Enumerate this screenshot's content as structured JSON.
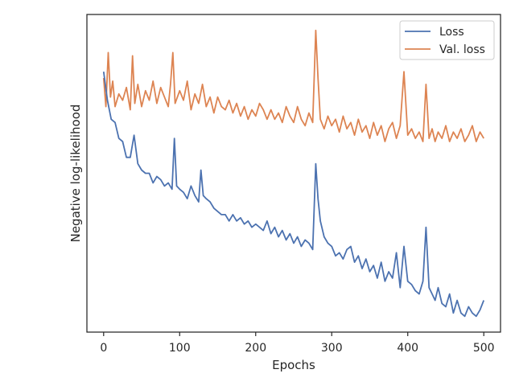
{
  "chart_data": {
    "type": "line",
    "title": "",
    "xlabel": "Epochs",
    "ylabel": "Negative log-likelihood",
    "xlim": [
      -22,
      522
    ],
    "ylim": [
      0.0,
      1.0
    ],
    "x_ticks": [
      0,
      100,
      200,
      300,
      400,
      500
    ],
    "y_ticks": [],
    "grid": false,
    "legend": {
      "position": "top-right"
    },
    "series": [
      {
        "name": "Loss",
        "color": "#4c72b0",
        "x_start": 0,
        "x_end": 500,
        "points": [
          [
            0,
            0.82
          ],
          [
            5,
            0.73
          ],
          [
            10,
            0.67
          ],
          [
            15,
            0.66
          ],
          [
            20,
            0.61
          ],
          [
            25,
            0.6
          ],
          [
            30,
            0.55
          ],
          [
            35,
            0.55
          ],
          [
            40,
            0.62
          ],
          [
            45,
            0.53
          ],
          [
            50,
            0.51
          ],
          [
            55,
            0.5
          ],
          [
            60,
            0.5
          ],
          [
            65,
            0.47
          ],
          [
            70,
            0.49
          ],
          [
            75,
            0.48
          ],
          [
            80,
            0.46
          ],
          [
            85,
            0.47
          ],
          [
            90,
            0.45
          ],
          [
            93,
            0.61
          ],
          [
            96,
            0.46
          ],
          [
            100,
            0.45
          ],
          [
            105,
            0.44
          ],
          [
            110,
            0.42
          ],
          [
            115,
            0.46
          ],
          [
            120,
            0.43
          ],
          [
            125,
            0.41
          ],
          [
            128,
            0.51
          ],
          [
            131,
            0.43
          ],
          [
            135,
            0.42
          ],
          [
            140,
            0.41
          ],
          [
            145,
            0.39
          ],
          [
            150,
            0.38
          ],
          [
            155,
            0.37
          ],
          [
            160,
            0.37
          ],
          [
            165,
            0.35
          ],
          [
            170,
            0.37
          ],
          [
            175,
            0.35
          ],
          [
            180,
            0.36
          ],
          [
            185,
            0.34
          ],
          [
            190,
            0.35
          ],
          [
            195,
            0.33
          ],
          [
            200,
            0.34
          ],
          [
            205,
            0.33
          ],
          [
            210,
            0.32
          ],
          [
            215,
            0.35
          ],
          [
            220,
            0.31
          ],
          [
            225,
            0.33
          ],
          [
            230,
            0.3
          ],
          [
            235,
            0.32
          ],
          [
            240,
            0.29
          ],
          [
            245,
            0.31
          ],
          [
            250,
            0.28
          ],
          [
            255,
            0.3
          ],
          [
            260,
            0.27
          ],
          [
            265,
            0.29
          ],
          [
            270,
            0.28
          ],
          [
            275,
            0.26
          ],
          [
            279,
            0.53
          ],
          [
            282,
            0.42
          ],
          [
            285,
            0.35
          ],
          [
            290,
            0.3
          ],
          [
            295,
            0.28
          ],
          [
            300,
            0.27
          ],
          [
            305,
            0.24
          ],
          [
            310,
            0.25
          ],
          [
            315,
            0.23
          ],
          [
            320,
            0.26
          ],
          [
            325,
            0.27
          ],
          [
            330,
            0.22
          ],
          [
            335,
            0.24
          ],
          [
            340,
            0.2
          ],
          [
            345,
            0.23
          ],
          [
            350,
            0.19
          ],
          [
            355,
            0.21
          ],
          [
            360,
            0.17
          ],
          [
            365,
            0.22
          ],
          [
            370,
            0.16
          ],
          [
            375,
            0.19
          ],
          [
            380,
            0.17
          ],
          [
            385,
            0.25
          ],
          [
            390,
            0.14
          ],
          [
            395,
            0.27
          ],
          [
            400,
            0.16
          ],
          [
            405,
            0.15
          ],
          [
            410,
            0.13
          ],
          [
            415,
            0.12
          ],
          [
            420,
            0.16
          ],
          [
            424,
            0.33
          ],
          [
            428,
            0.14
          ],
          [
            432,
            0.12
          ],
          [
            436,
            0.1
          ],
          [
            440,
            0.14
          ],
          [
            445,
            0.09
          ],
          [
            450,
            0.08
          ],
          [
            455,
            0.12
          ],
          [
            460,
            0.06
          ],
          [
            465,
            0.1
          ],
          [
            470,
            0.06
          ],
          [
            475,
            0.05
          ],
          [
            480,
            0.08
          ],
          [
            485,
            0.06
          ],
          [
            490,
            0.05
          ],
          [
            495,
            0.07
          ],
          [
            500,
            0.1
          ]
        ]
      },
      {
        "name": "Val. loss",
        "color": "#dd8452",
        "x_start": 0,
        "x_end": 500,
        "points": [
          [
            0,
            0.8
          ],
          [
            3,
            0.71
          ],
          [
            6,
            0.88
          ],
          [
            9,
            0.74
          ],
          [
            12,
            0.79
          ],
          [
            15,
            0.71
          ],
          [
            20,
            0.75
          ],
          [
            25,
            0.73
          ],
          [
            30,
            0.77
          ],
          [
            35,
            0.7
          ],
          [
            38,
            0.87
          ],
          [
            41,
            0.72
          ],
          [
            45,
            0.78
          ],
          [
            50,
            0.71
          ],
          [
            55,
            0.76
          ],
          [
            60,
            0.73
          ],
          [
            65,
            0.79
          ],
          [
            70,
            0.72
          ],
          [
            75,
            0.77
          ],
          [
            80,
            0.74
          ],
          [
            85,
            0.71
          ],
          [
            88,
            0.78
          ],
          [
            91,
            0.88
          ],
          [
            94,
            0.72
          ],
          [
            100,
            0.76
          ],
          [
            105,
            0.73
          ],
          [
            110,
            0.79
          ],
          [
            115,
            0.7
          ],
          [
            120,
            0.75
          ],
          [
            125,
            0.72
          ],
          [
            130,
            0.78
          ],
          [
            135,
            0.71
          ],
          [
            140,
            0.74
          ],
          [
            145,
            0.69
          ],
          [
            150,
            0.74
          ],
          [
            155,
            0.71
          ],
          [
            160,
            0.7
          ],
          [
            165,
            0.73
          ],
          [
            170,
            0.69
          ],
          [
            175,
            0.72
          ],
          [
            180,
            0.68
          ],
          [
            185,
            0.71
          ],
          [
            190,
            0.67
          ],
          [
            195,
            0.7
          ],
          [
            200,
            0.68
          ],
          [
            205,
            0.72
          ],
          [
            210,
            0.7
          ],
          [
            215,
            0.67
          ],
          [
            220,
            0.7
          ],
          [
            225,
            0.67
          ],
          [
            230,
            0.69
          ],
          [
            235,
            0.66
          ],
          [
            240,
            0.71
          ],
          [
            245,
            0.68
          ],
          [
            250,
            0.66
          ],
          [
            255,
            0.71
          ],
          [
            260,
            0.67
          ],
          [
            265,
            0.65
          ],
          [
            270,
            0.69
          ],
          [
            275,
            0.66
          ],
          [
            279,
            0.95
          ],
          [
            282,
            0.8
          ],
          [
            285,
            0.67
          ],
          [
            290,
            0.64
          ],
          [
            295,
            0.68
          ],
          [
            300,
            0.65
          ],
          [
            305,
            0.67
          ],
          [
            310,
            0.63
          ],
          [
            315,
            0.68
          ],
          [
            320,
            0.64
          ],
          [
            325,
            0.66
          ],
          [
            330,
            0.62
          ],
          [
            335,
            0.67
          ],
          [
            340,
            0.63
          ],
          [
            345,
            0.65
          ],
          [
            350,
            0.61
          ],
          [
            355,
            0.66
          ],
          [
            360,
            0.62
          ],
          [
            365,
            0.65
          ],
          [
            370,
            0.6
          ],
          [
            375,
            0.64
          ],
          [
            380,
            0.66
          ],
          [
            385,
            0.61
          ],
          [
            390,
            0.65
          ],
          [
            395,
            0.82
          ],
          [
            400,
            0.62
          ],
          [
            405,
            0.64
          ],
          [
            410,
            0.61
          ],
          [
            415,
            0.63
          ],
          [
            420,
            0.6
          ],
          [
            424,
            0.78
          ],
          [
            428,
            0.61
          ],
          [
            432,
            0.64
          ],
          [
            436,
            0.6
          ],
          [
            440,
            0.63
          ],
          [
            445,
            0.61
          ],
          [
            450,
            0.65
          ],
          [
            455,
            0.6
          ],
          [
            460,
            0.63
          ],
          [
            465,
            0.61
          ],
          [
            470,
            0.64
          ],
          [
            475,
            0.6
          ],
          [
            480,
            0.62
          ],
          [
            485,
            0.65
          ],
          [
            490,
            0.6
          ],
          [
            495,
            0.63
          ],
          [
            500,
            0.61
          ]
        ]
      }
    ]
  }
}
